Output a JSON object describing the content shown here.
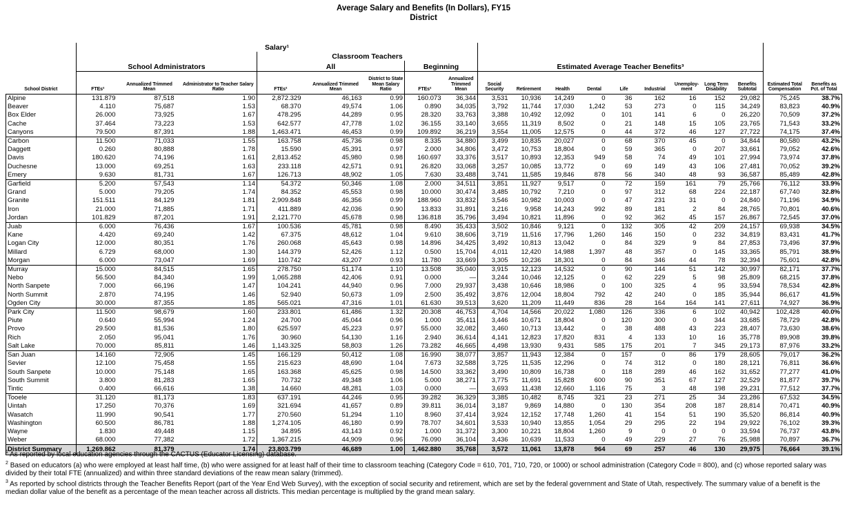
{
  "title": {
    "line1": "Average Salary and Benefits (In Dollars), FY15",
    "line2": "District"
  },
  "header": {
    "salary_group": "Salary¹",
    "classroom_teachers_group": "Classroom Teachers",
    "school_administrators_group": "School Administrators",
    "all_group": "All",
    "beginning_group": "Beginning",
    "benefits_group": "Estimated Average Teacher Benefits³",
    "columns": [
      "School District",
      "FTEs²",
      "Annualized Trimmed\nMean",
      "Administrator to Teacher Salary\nRatio",
      "FTEs²",
      "Annualized Trimmed\nMean",
      "District to State\nMean Salary\nRatio",
      "FTEs²",
      "Annualized\nTrimmed\nMean",
      "Social\nSecurity",
      "Retirement",
      "Health",
      "Dental",
      "Life",
      "Industrial",
      "Unemploy-\nment",
      "Long Term\nDisability",
      "Benefits\nSubtotal",
      "Estimated Total\nCompensation",
      "Benefits as\nPct. of Total"
    ]
  },
  "table": {
    "group_start_indices": [
      5,
      10,
      15,
      20,
      25,
      30,
      35
    ],
    "rows": [
      [
        "Alpine",
        "131.879",
        "87,518",
        "1.90",
        "2,872.329",
        "46,163",
        "0.99",
        "160.073",
        "36,344",
        "3,531",
        "10,936",
        "14,249",
        "0",
        "36",
        "162",
        "16",
        "152",
        "29,082",
        "75,245",
        "38.7%"
      ],
      [
        "Beaver",
        "4.110",
        "75,687",
        "1.53",
        "68.370",
        "49,574",
        "1.06",
        "0.890",
        "34,035",
        "3,792",
        "11,744",
        "17,030",
        "1,242",
        "53",
        "273",
        "0",
        "115",
        "34,249",
        "83,823",
        "40.9%"
      ],
      [
        "Box Elder",
        "26.000",
        "73,925",
        "1.67",
        "478.295",
        "44,289",
        "0.95",
        "28.320",
        "33,763",
        "3,388",
        "10,492",
        "12,092",
        "0",
        "101",
        "141",
        "6",
        "0",
        "26,220",
        "70,509",
        "37.2%"
      ],
      [
        "Cache",
        "37.464",
        "73,223",
        "1.53",
        "642.577",
        "47,778",
        "1.02",
        "36.155",
        "33,140",
        "3,655",
        "11,319",
        "8,502",
        "0",
        "21",
        "148",
        "15",
        "105",
        "23,765",
        "71,543",
        "33.2%"
      ],
      [
        "Canyons",
        "79.500",
        "87,391",
        "1.88",
        "1,463.471",
        "46,453",
        "0.99",
        "109.892",
        "36,219",
        "3,554",
        "11,005",
        "12,575",
        "0",
        "44",
        "372",
        "46",
        "127",
        "27,722",
        "74,175",
        "37.4%"
      ],
      [
        "Carbon",
        "11.500",
        "71,033",
        "1.55",
        "163.758",
        "45,736",
        "0.98",
        "8.335",
        "34,880",
        "3,499",
        "10,835",
        "20,027",
        "0",
        "68",
        "370",
        "45",
        "0",
        "34,844",
        "80,580",
        "43.2%"
      ],
      [
        "Daggett",
        "0.260",
        "80,888",
        "1.78",
        "15.590",
        "45,391",
        "0.97",
        "2.000",
        "34,806",
        "3,472",
        "10,753",
        "18,804",
        "0",
        "59",
        "365",
        "0",
        "207",
        "33,661",
        "79,052",
        "42.6%"
      ],
      [
        "Davis",
        "180.620",
        "74,196",
        "1.61",
        "2,813.452",
        "45,980",
        "0.98",
        "160.697",
        "33,376",
        "3,517",
        "10,893",
        "12,353",
        "949",
        "58",
        "74",
        "49",
        "101",
        "27,994",
        "73,974",
        "37.8%"
      ],
      [
        "Duchesne",
        "13.000",
        "69,251",
        "1.63",
        "233.118",
        "42,571",
        "0.91",
        "26.820",
        "33,068",
        "3,257",
        "10,085",
        "13,772",
        "0",
        "69",
        "149",
        "43",
        "106",
        "27,481",
        "70,052",
        "39.2%"
      ],
      [
        "Emery",
        "9.630",
        "81,731",
        "1.67",
        "126.713",
        "48,902",
        "1.05",
        "7.630",
        "33,488",
        "3,741",
        "11,585",
        "19,846",
        "878",
        "56",
        "340",
        "48",
        "93",
        "36,587",
        "85,489",
        "42.8%"
      ],
      [
        "Garfield",
        "5.200",
        "57,543",
        "1.14",
        "54.372",
        "50,346",
        "1.08",
        "2.000",
        "34,511",
        "3,851",
        "11,927",
        "9,517",
        "0",
        "72",
        "159",
        "161",
        "79",
        "25,766",
        "76,112",
        "33.9%"
      ],
      [
        "Grand",
        "5.000",
        "79,205",
        "1.74",
        "84.352",
        "45,553",
        "0.98",
        "10.000",
        "30,474",
        "3,485",
        "10,792",
        "7,210",
        "0",
        "97",
        "312",
        "68",
        "224",
        "22,187",
        "67,740",
        "32.8%"
      ],
      [
        "Granite",
        "151.511",
        "84,129",
        "1.81",
        "2,909.848",
        "46,356",
        "0.99",
        "188.960",
        "33,832",
        "3,546",
        "10,982",
        "10,003",
        "0",
        "47",
        "231",
        "31",
        "0",
        "24,840",
        "71,196",
        "34.9%"
      ],
      [
        "Iron",
        "21.000",
        "71,885",
        "1.71",
        "411.889",
        "42,036",
        "0.90",
        "13.833",
        "31,891",
        "3,216",
        "9,958",
        "14,243",
        "992",
        "89",
        "181",
        "2",
        "84",
        "28,765",
        "70,801",
        "40.6%"
      ],
      [
        "Jordan",
        "101.829",
        "87,201",
        "1.91",
        "2,121.770",
        "45,678",
        "0.98",
        "136.818",
        "35,796",
        "3,494",
        "10,821",
        "11,896",
        "0",
        "92",
        "362",
        "45",
        "157",
        "26,867",
        "72,545",
        "37.0%"
      ],
      [
        "Juab",
        "6.000",
        "76,436",
        "1.67",
        "100.536",
        "45,781",
        "0.98",
        "8.490",
        "35,433",
        "3,502",
        "10,846",
        "9,121",
        "0",
        "132",
        "305",
        "42",
        "209",
        "24,157",
        "69,938",
        "34.5%"
      ],
      [
        "Kane",
        "4.420",
        "69,240",
        "1.42",
        "67.375",
        "48,612",
        "1.04",
        "9.610",
        "38,606",
        "3,719",
        "11,516",
        "17,796",
        "1,260",
        "146",
        "150",
        "0",
        "232",
        "34,819",
        "83,431",
        "41.7%"
      ],
      [
        "Logan City",
        "12.000",
        "80,351",
        "1.76",
        "260.068",
        "45,643",
        "0.98",
        "14.896",
        "34,425",
        "3,492",
        "10,813",
        "13,042",
        "0",
        "84",
        "329",
        "9",
        "84",
        "27,853",
        "73,496",
        "37.9%"
      ],
      [
        "Millard",
        "6.729",
        "68,000",
        "1.30",
        "144.379",
        "52,426",
        "1.12",
        "0.500",
        "15,704",
        "4,011",
        "12,420",
        "14,988",
        "1,397",
        "48",
        "357",
        "0",
        "145",
        "33,365",
        "85,791",
        "38.9%"
      ],
      [
        "Morgan",
        "6.000",
        "73,047",
        "1.69",
        "110.742",
        "43,207",
        "0.93",
        "11.780",
        "33,669",
        "3,305",
        "10,236",
        "18,301",
        "0",
        "84",
        "346",
        "44",
        "78",
        "32,394",
        "75,601",
        "42.8%"
      ],
      [
        "Murray",
        "15.000",
        "84,515",
        "1.65",
        "278.750",
        "51,174",
        "1.10",
        "13.508",
        "35,040",
        "3,915",
        "12,123",
        "14,532",
        "0",
        "90",
        "144",
        "51",
        "142",
        "30,997",
        "82,171",
        "37.7%"
      ],
      [
        "Nebo",
        "56.500",
        "84,340",
        "1.99",
        "1,065.288",
        "42,406",
        "0.91",
        "0.000",
        "—",
        "3,244",
        "10,046",
        "12,125",
        "0",
        "62",
        "229",
        "5",
        "98",
        "25,809",
        "68,215",
        "37.8%"
      ],
      [
        "North Sanpete",
        "7.000",
        "66,196",
        "1.47",
        "104.241",
        "44,940",
        "0.96",
        "7.000",
        "29,937",
        "3,438",
        "10,646",
        "18,986",
        "0",
        "100",
        "325",
        "4",
        "95",
        "33,594",
        "78,534",
        "42.8%"
      ],
      [
        "North Summit",
        "2.870",
        "74,195",
        "1.46",
        "52.940",
        "50,673",
        "1.09",
        "2.500",
        "35,492",
        "3,876",
        "12,004",
        "18,804",
        "792",
        "42",
        "240",
        "0",
        "185",
        "35,944",
        "86,617",
        "41.5%"
      ],
      [
        "Ogden City",
        "30.000",
        "87,355",
        "1.85",
        "565.021",
        "47,316",
        "1.01",
        "61.630",
        "39,513",
        "3,620",
        "11,209",
        "11,449",
        "836",
        "28",
        "164",
        "164",
        "141",
        "27,611",
        "74,927",
        "36.9%"
      ],
      [
        "Park City",
        "11.500",
        "98,679",
        "1.60",
        "233.801",
        "61,486",
        "1.32",
        "20.308",
        "46,753",
        "4,704",
        "14,566",
        "20,022",
        "1,080",
        "126",
        "336",
        "6",
        "102",
        "40,942",
        "102,428",
        "40.0%"
      ],
      [
        "Piute",
        "0.640",
        "55,994",
        "1.24",
        "24.700",
        "45,044",
        "0.96",
        "1.000",
        "35,411",
        "3,446",
        "10,671",
        "18,804",
        "0",
        "120",
        "300",
        "0",
        "344",
        "33,685",
        "78,729",
        "42.8%"
      ],
      [
        "Provo",
        "29.500",
        "81,536",
        "1.80",
        "625.597",
        "45,223",
        "0.97",
        "55.000",
        "32,082",
        "3,460",
        "10,713",
        "13,442",
        "0",
        "38",
        "488",
        "43",
        "223",
        "28,407",
        "73,630",
        "38.6%"
      ],
      [
        "Rich",
        "2.050",
        "95,041",
        "1.76",
        "30.960",
        "54,130",
        "1.16",
        "2.940",
        "36,614",
        "4,141",
        "12,823",
        "17,820",
        "831",
        "4",
        "133",
        "10",
        "16",
        "35,778",
        "89,908",
        "39.8%"
      ],
      [
        "Salt Lake",
        "70.000",
        "85,811",
        "1.46",
        "1,143.325",
        "58,803",
        "1.26",
        "73.282",
        "46,665",
        "4,498",
        "13,930",
        "9,431",
        "585",
        "175",
        "201",
        "7",
        "345",
        "29,173",
        "87,976",
        "33.2%"
      ],
      [
        "San Juan",
        "14.160",
        "72,905",
        "1.45",
        "166.129",
        "50,412",
        "1.08",
        "16.990",
        "38,077",
        "3,857",
        "11,943",
        "12,384",
        "0",
        "157",
        "0",
        "86",
        "179",
        "28,605",
        "79,017",
        "36.2%"
      ],
      [
        "Sevier",
        "12.100",
        "75,458",
        "1.55",
        "215.623",
        "48,690",
        "1.04",
        "7.673",
        "32,588",
        "3,725",
        "11,535",
        "12,296",
        "0",
        "74",
        "312",
        "0",
        "180",
        "28,121",
        "76,811",
        "36.6%"
      ],
      [
        "South Sanpete",
        "10.000",
        "75,148",
        "1.65",
        "163.368",
        "45,625",
        "0.98",
        "14.500",
        "33,362",
        "3,490",
        "10,809",
        "16,738",
        "0",
        "118",
        "289",
        "46",
        "162",
        "31,652",
        "77,277",
        "41.0%"
      ],
      [
        "South Summit",
        "3.800",
        "81,283",
        "1.65",
        "70.732",
        "49,348",
        "1.06",
        "5.000",
        "38,271",
        "3,775",
        "11,691",
        "15,828",
        "600",
        "90",
        "351",
        "67",
        "127",
        "32,529",
        "81,877",
        "39.7%"
      ],
      [
        "Tintic",
        "0.400",
        "66,616",
        "1.38",
        "14.660",
        "48,281",
        "1.03",
        "0.000",
        "—",
        "3,693",
        "11,438",
        "12,660",
        "1,116",
        "75",
        "3",
        "48",
        "198",
        "29,231",
        "77,512",
        "37.7%"
      ],
      [
        "Tooele",
        "31.120",
        "81,173",
        "1.83",
        "637.191",
        "44,246",
        "0.95",
        "39.282",
        "36,329",
        "3,385",
        "10,482",
        "8,745",
        "321",
        "23",
        "271",
        "25",
        "34",
        "23,286",
        "67,532",
        "34.5%"
      ],
      [
        "Uintah",
        "17.250",
        "70,376",
        "1.69",
        "321.694",
        "41,657",
        "0.89",
        "39.811",
        "36,014",
        "3,187",
        "9,869",
        "14,880",
        "0",
        "130",
        "354",
        "208",
        "187",
        "28,814",
        "70,471",
        "40.9%"
      ],
      [
        "Wasatch",
        "11.990",
        "90,541",
        "1.77",
        "270.560",
        "51,294",
        "1.10",
        "8.960",
        "37,414",
        "3,924",
        "12,152",
        "17,748",
        "1,260",
        "41",
        "154",
        "51",
        "190",
        "35,520",
        "86,814",
        "40.9%"
      ],
      [
        "Washington",
        "60.500",
        "86,781",
        "1.88",
        "1,274.105",
        "46,180",
        "0.99",
        "78.707",
        "34,601",
        "3,533",
        "10,940",
        "13,855",
        "1,054",
        "29",
        "295",
        "22",
        "194",
        "29,922",
        "76,102",
        "39.3%"
      ],
      [
        "Wayne",
        "1.830",
        "49,448",
        "1.15",
        "34.895",
        "43,143",
        "0.92",
        "1.000",
        "31,372",
        "3,300",
        "10,221",
        "18,804",
        "1,260",
        "9",
        "0",
        "0",
        "0",
        "33,594",
        "76,737",
        "43.8%"
      ],
      [
        "Weber",
        "68.000",
        "77,382",
        "1.72",
        "1,367.215",
        "44,909",
        "0.96",
        "76.090",
        "36,104",
        "3,436",
        "10,639",
        "11,533",
        "0",
        "49",
        "229",
        "27",
        "76",
        "25,988",
        "70,897",
        "36.7%"
      ]
    ],
    "summary_row": [
      "District Summary",
      "1,269.862",
      "81,379",
      "1.74",
      "23,803.799",
      "46,689",
      "1.00",
      "1,462.880",
      "35,768",
      "3,572",
      "11,061",
      "13,878",
      "964",
      "69",
      "257",
      "46",
      "130",
      "29,975",
      "76,664",
      "39.1%"
    ]
  },
  "footnotes": [
    {
      "marker": "1",
      "text": "As reported by local education agencies through the CACTUS (Educator Licensing) database."
    },
    {
      "marker": "2",
      "text": "Based on educators (a) who were employed at least half time, (b) who were assigned for at least half of their time to classroom teaching (Category Code = 610, 701, 710, 720, or 1000) or school administration (Category Code = 800), and (c) whose reported salary was divided by their total FTE (annualized) and within three standard deviations of the reaw mean salary (trimmed)."
    },
    {
      "marker": "3",
      "text": "As reported by school districts through the Teacher Benefits Report (part of the Year End Web Survey), with the exception of social security and retirement, which are set by the federal government and State of Utah, respectively. The summary value of a benefit is the median dollar value of the benefit as a percentage of the mean teacher across all districts. This median percentage is multiplied by the grand mean salary."
    }
  ]
}
